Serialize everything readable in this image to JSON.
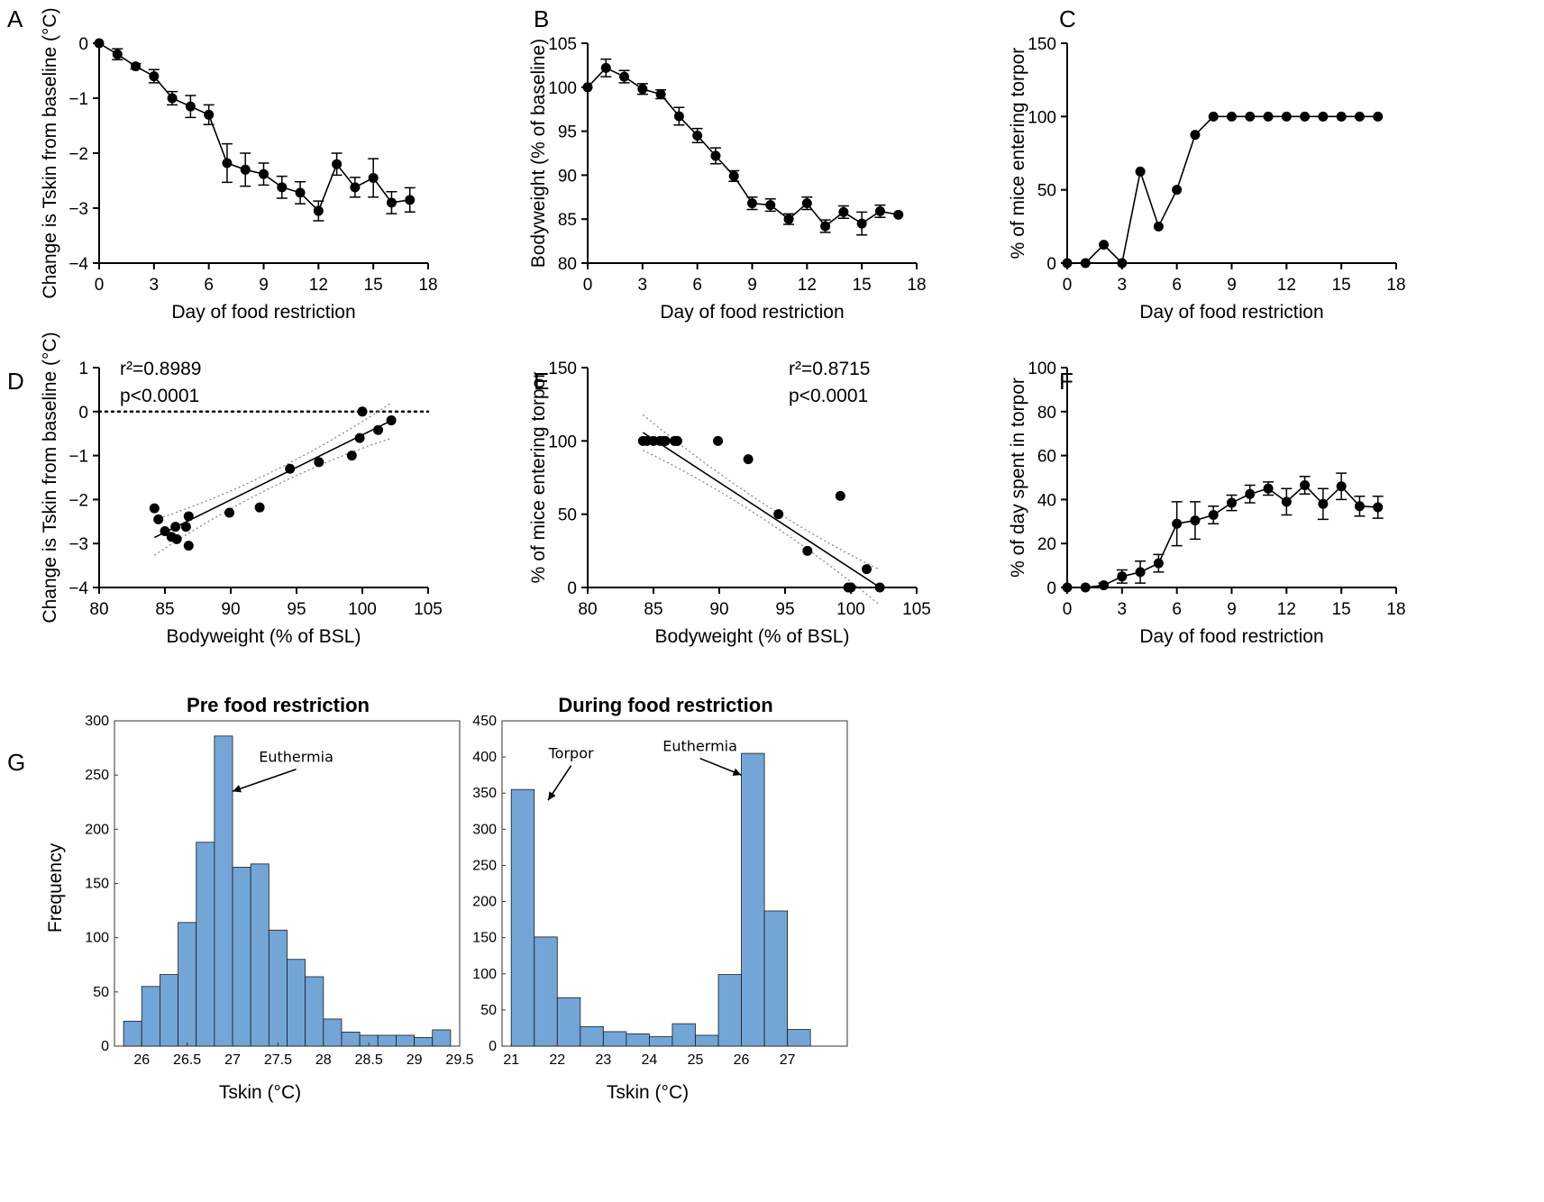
{
  "panels": [
    {
      "letter": "A"
    },
    {
      "letter": "B"
    },
    {
      "letter": "C"
    },
    {
      "letter": "D"
    },
    {
      "letter": "E"
    },
    {
      "letter": "F"
    },
    {
      "letter": "G"
    }
  ],
  "chart_data": [
    {
      "panel": "A",
      "type": "line",
      "xlabel": "Day of food restriction",
      "ylabel": "Change is Tskin from baseline (°C)",
      "xlim": [
        0,
        18
      ],
      "ylim": [
        -4,
        0
      ],
      "xticks": [
        0,
        3,
        6,
        9,
        12,
        15,
        18
      ],
      "yticks": [
        0,
        -1,
        -2,
        -3,
        -4
      ],
      "x": [
        0,
        1,
        2,
        3,
        4,
        5,
        6,
        7,
        8,
        9,
        10,
        11,
        12,
        13,
        14,
        15,
        16,
        17
      ],
      "y": [
        0,
        -0.2,
        -0.42,
        -0.6,
        -1.0,
        -1.15,
        -1.3,
        -2.18,
        -2.3,
        -2.38,
        -2.62,
        -2.72,
        -3.05,
        -2.2,
        -2.62,
        -2.45,
        -2.9,
        -2.85
      ],
      "err": [
        0,
        0.1,
        0.05,
        0.12,
        0.12,
        0.2,
        0.18,
        0.35,
        0.3,
        0.2,
        0.2,
        0.2,
        0.18,
        0.2,
        0.18,
        0.35,
        0.2,
        0.22
      ]
    },
    {
      "panel": "B",
      "type": "line",
      "xlabel": "Day of food restriction",
      "ylabel": "Bodyweight (% of baseline)",
      "xlim": [
        0,
        18
      ],
      "ylim": [
        80,
        105
      ],
      "xticks": [
        0,
        3,
        6,
        9,
        12,
        15,
        18
      ],
      "yticks": [
        80,
        85,
        90,
        95,
        100,
        105
      ],
      "x": [
        0,
        1,
        2,
        3,
        4,
        5,
        6,
        7,
        8,
        9,
        10,
        11,
        12,
        13,
        14,
        15,
        16,
        17
      ],
      "y": [
        100,
        102.2,
        101.2,
        99.8,
        99.2,
        96.7,
        94.5,
        92.2,
        89.9,
        86.8,
        86.6,
        85,
        86.8,
        84.2,
        85.8,
        84.5,
        85.9,
        85.5
      ],
      "err": [
        0,
        1.0,
        0.7,
        0.6,
        0.5,
        1.0,
        0.8,
        0.9,
        0.6,
        0.7,
        0.7,
        0.6,
        0.7,
        0.7,
        0.7,
        1.3,
        0.7,
        0
      ]
    },
    {
      "panel": "C",
      "type": "line",
      "xlabel": "Day of food restriction",
      "ylabel": "% of mice entering torpor",
      "xlim": [
        0,
        18
      ],
      "ylim": [
        0,
        150
      ],
      "xticks": [
        0,
        3,
        6,
        9,
        12,
        15,
        18
      ],
      "yticks": [
        0,
        50,
        100,
        150
      ],
      "x": [
        0,
        1,
        2,
        3,
        4,
        5,
        6,
        7,
        8,
        9,
        10,
        11,
        12,
        13,
        14,
        15,
        16,
        17
      ],
      "y": [
        0,
        0,
        12.5,
        0,
        62.5,
        25,
        50,
        87.5,
        100,
        100,
        100,
        100,
        100,
        100,
        100,
        100,
        100,
        100
      ]
    },
    {
      "panel": "D",
      "type": "scatter",
      "xlabel": "Bodyweight (% of BSL)",
      "ylabel": "Change is Tskin from baseline (°C)",
      "xlim": [
        80,
        105
      ],
      "ylim": [
        -4,
        1
      ],
      "xticks": [
        80,
        85,
        90,
        95,
        100,
        105
      ],
      "yticks": [
        1,
        0,
        -1,
        -2,
        -3,
        -4
      ],
      "r2_label": "r²=0.8989",
      "p_label": "p<0.0001",
      "x": [
        100,
        102.2,
        101.2,
        99.8,
        99.2,
        96.7,
        94.5,
        92.2,
        89.9,
        86.8,
        86.6,
        85,
        86.8,
        84.2,
        85.8,
        84.5,
        85.9,
        85.5
      ],
      "y": [
        0,
        -0.2,
        -0.42,
        -0.6,
        -1.0,
        -1.15,
        -1.3,
        -2.18,
        -2.3,
        -2.38,
        -2.62,
        -2.72,
        -3.05,
        -2.2,
        -2.62,
        -2.45,
        -2.9,
        -2.85
      ],
      "fit": {
        "slope": 0.1477,
        "intercept": -15.3
      },
      "zero_line": true
    },
    {
      "panel": "E",
      "type": "scatter",
      "xlabel": "Bodyweight (% of BSL)",
      "ylabel": "% of mice entering torpor",
      "xlim": [
        80,
        105
      ],
      "ylim": [
        0,
        150
      ],
      "xticks": [
        80,
        85,
        90,
        95,
        100,
        105
      ],
      "yticks": [
        0,
        50,
        100,
        150
      ],
      "r2_label": "r²=0.8715",
      "p_label": "p<0.0001",
      "x": [
        100,
        102.2,
        101.2,
        99.8,
        99.2,
        96.7,
        94.5,
        92.2,
        89.9,
        86.8,
        86.6,
        85,
        86.8,
        84.2,
        85.8,
        84.5,
        85.9,
        85.5
      ],
      "y": [
        0,
        0,
        12.5,
        0,
        62.5,
        25,
        50,
        87.5,
        100,
        100,
        100,
        100,
        100,
        100,
        100,
        100,
        100,
        100
      ],
      "fit": {
        "slope": -5.87,
        "intercept": 600
      }
    },
    {
      "panel": "F",
      "type": "line",
      "xlabel": "Day of food restriction",
      "ylabel": "% of day spent in torpor",
      "xlim": [
        0,
        18
      ],
      "ylim": [
        0,
        100
      ],
      "xticks": [
        0,
        3,
        6,
        9,
        12,
        15,
        18
      ],
      "yticks": [
        0,
        20,
        40,
        60,
        80,
        100
      ],
      "x": [
        0,
        1,
        2,
        3,
        4,
        5,
        6,
        7,
        8,
        9,
        10,
        11,
        12,
        13,
        14,
        15,
        16,
        17
      ],
      "y": [
        0,
        0,
        1,
        5,
        7,
        11,
        29,
        30.5,
        33,
        38.5,
        42.5,
        45,
        39,
        46.5,
        38,
        46,
        37,
        36.5
      ],
      "err": [
        0,
        0,
        1,
        3,
        5,
        4,
        10,
        8.5,
        4,
        3.5,
        4,
        3,
        6,
        4,
        7,
        6,
        4.5,
        5
      ]
    },
    {
      "panel": "G1",
      "type": "bar",
      "title": "Pre food restriction",
      "xlabel": "Tskin (°C)",
      "ylabel": "Frequency",
      "xlim": [
        25.7,
        29.5
      ],
      "ylim": [
        0,
        300
      ],
      "xticks": [
        26,
        26.5,
        27,
        27.5,
        28,
        28.5,
        29,
        29.5
      ],
      "xtick_labels": [
        "26",
        "26.5",
        "27",
        "27.5",
        "28",
        "28.5",
        "29",
        "29.5"
      ],
      "yticks": [
        0,
        50,
        100,
        150,
        200,
        250,
        300
      ],
      "bin_width": 0.2,
      "bin_starts": [
        25.8,
        26.0,
        26.2,
        26.4,
        26.6,
        26.8,
        27.0,
        27.2,
        27.4,
        27.6,
        27.8,
        28.0,
        28.2,
        28.4,
        28.6,
        28.8,
        29.0,
        29.2
      ],
      "values": [
        23,
        55,
        66,
        114,
        188,
        286,
        165,
        168,
        107,
        80,
        64,
        25,
        13,
        10,
        10,
        10,
        8,
        15
      ],
      "annotations": [
        {
          "text": "Euthermia",
          "x": 27.7,
          "y": 262,
          "arrow_x": 27.0,
          "arrow_y": 235
        }
      ]
    },
    {
      "panel": "G2",
      "type": "bar",
      "title": "During food restriction",
      "xlabel": "Tskin (°C)",
      "ylabel": "",
      "xlim": [
        20.8,
        28.3
      ],
      "ylim": [
        0,
        450
      ],
      "xticks": [
        21,
        22,
        23,
        24,
        25,
        26,
        27
      ],
      "xtick_labels": [
        "21",
        "22",
        "23",
        "24",
        "25",
        "26",
        "27"
      ],
      "yticks": [
        0,
        50,
        100,
        150,
        200,
        250,
        300,
        350,
        400,
        450
      ],
      "bin_width": 0.5,
      "bin_starts": [
        21.0,
        21.5,
        22.0,
        22.5,
        23.0,
        23.5,
        24.0,
        24.5,
        25.0,
        25.5,
        26.0,
        26.5,
        27.0
      ],
      "values": [
        355,
        151,
        67,
        27,
        20,
        17,
        13,
        31,
        15,
        99,
        405,
        187,
        23
      ],
      "annotations": [
        {
          "text": "Torpor",
          "x": 22.3,
          "y": 398,
          "arrow_x": 21.8,
          "arrow_y": 340
        },
        {
          "text": "Euthermia",
          "x": 25.1,
          "y": 408,
          "arrow_x": 26.0,
          "arrow_y": 375
        }
      ]
    }
  ]
}
